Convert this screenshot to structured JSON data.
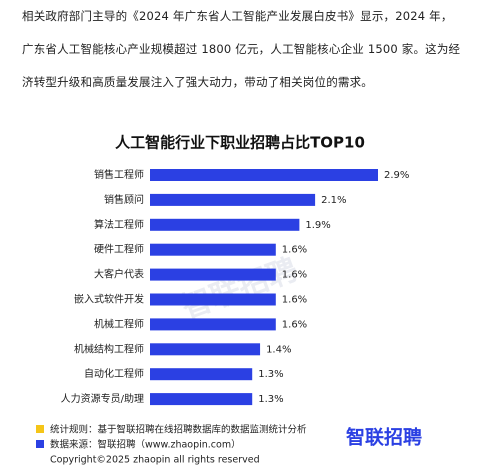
{
  "paragraph": "相关政府部门主导的《2024 年广东省人工智能产业发展白皮书》显示，2024 年，广东省人工智能核心产业规模超过 1800 亿元，人工智能核心企业 1500 家。这为经济转型升级和高质量发展注入了强大动力，带动了相关岗位的需求。",
  "chart_data": {
    "type": "bar",
    "orientation": "horizontal",
    "title": "人工智能行业下职业招聘占比TOP10",
    "categories": [
      "销售工程师",
      "销售顾问",
      "算法工程师",
      "硬件工程师",
      "大客户代表",
      "嵌入式软件开发",
      "机械工程师",
      "机械结构工程师",
      "自动化工程师",
      "人力资源专员/助理"
    ],
    "values": [
      2.9,
      2.1,
      1.9,
      1.6,
      1.6,
      1.6,
      1.6,
      1.4,
      1.3,
      1.3
    ],
    "value_labels": [
      "2.9%",
      "2.1%",
      "1.9%",
      "1.6%",
      "1.6%",
      "1.6%",
      "1.6%",
      "1.4%",
      "1.3%",
      "1.3%"
    ],
    "color": "#2b40e3"
  },
  "notes": [
    "统计规则：基于智联招聘在线招聘数据库的数据监测统计分析",
    "数据来源：智联招聘（www.zhaopin.com）"
  ],
  "logo": "智联招聘",
  "watermark": "智联招聘",
  "copyright": "Copyright©2025 zhaopin all rights reserved"
}
